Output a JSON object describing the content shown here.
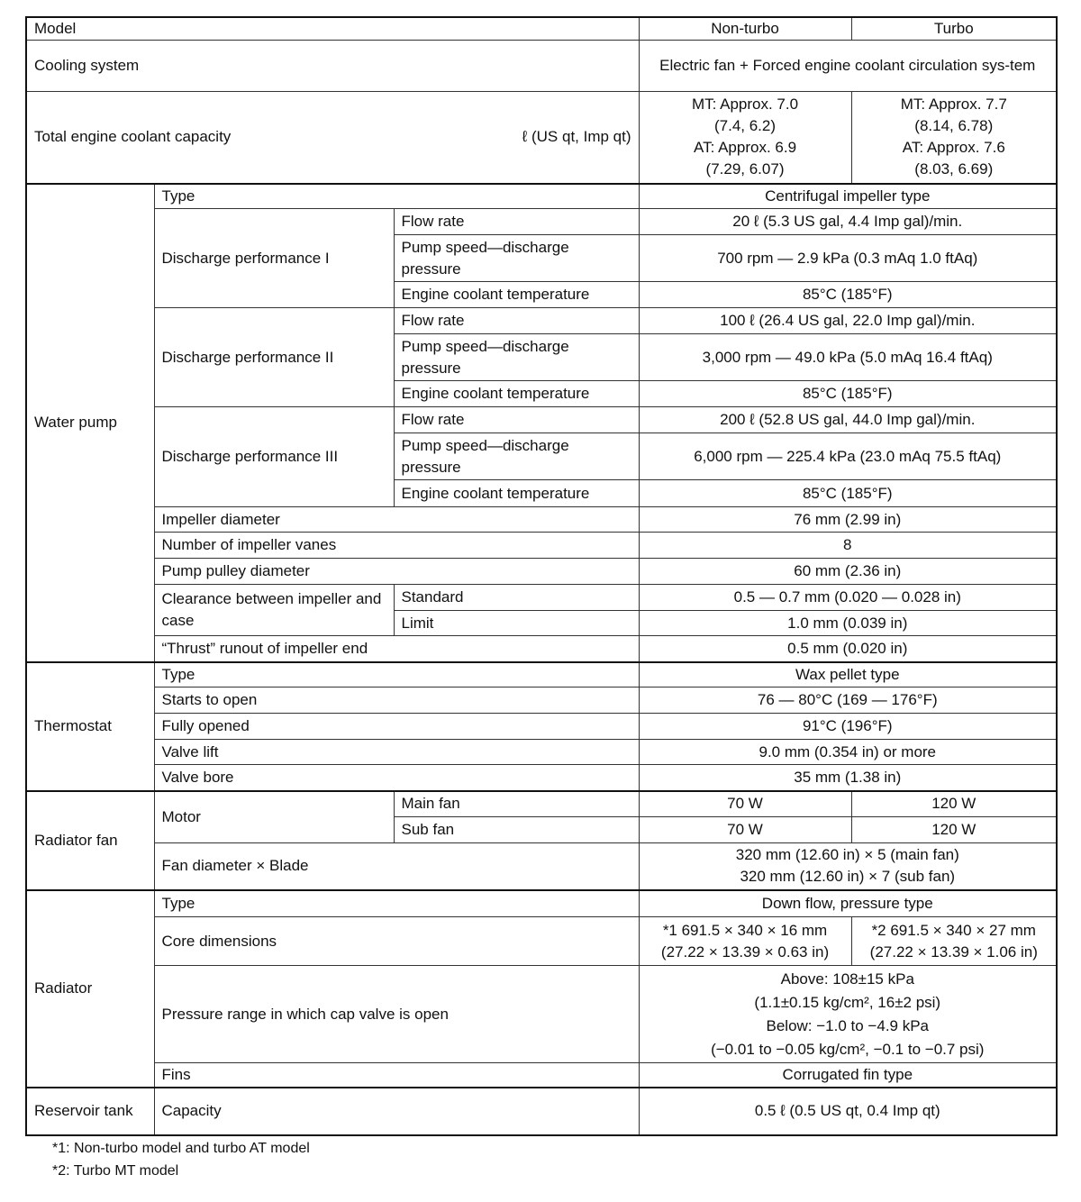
{
  "header": {
    "model": "Model",
    "non_turbo": "Non-turbo",
    "turbo": "Turbo"
  },
  "cooling": {
    "label": "Cooling system",
    "value": "Electric fan + Forced engine coolant circulation sys-tem"
  },
  "capacity": {
    "label": "Total engine coolant capacity",
    "unit": "ℓ (US qt, Imp qt)",
    "non_turbo": [
      "MT: Approx. 7.0",
      "(7.4, 6.2)",
      "AT: Approx. 6.9",
      "(7.29, 6.07)"
    ],
    "turbo": [
      "MT: Approx. 7.7",
      "(8.14, 6.78)",
      "AT: Approx. 7.6",
      "(8.03, 6.69)"
    ]
  },
  "water_pump": {
    "label": "Water  pump",
    "type_label": "Type",
    "type_value": "Centrifugal impeller type",
    "flow_label": "Flow rate",
    "speed_label": "Pump speed—discharge pressure",
    "temp_label": "Engine coolant temperature",
    "dp1": {
      "label": "Discharge performance I",
      "flow": "20  ℓ (5.3 US gal, 4.4 Imp gal)/min.",
      "speed": "700 rpm — 2.9 kPa (0.3 mAq 1.0 ftAq)",
      "temp": "85°C (185°F)"
    },
    "dp2": {
      "label": "Discharge performance II",
      "flow": "100  ℓ (26.4 US gal, 22.0 Imp gal)/min.",
      "speed": "3,000 rpm — 49.0 kPa (5.0 mAq 16.4 ftAq)",
      "temp": "85°C (185°F)"
    },
    "dp3": {
      "label": "Discharge performance III",
      "flow": "200  ℓ (52.8 US gal, 44.0 Imp gal)/min.",
      "speed": "6,000 rpm — 225.4 kPa (23.0 mAq 75.5 ftAq)",
      "temp": "85°C (185°F)"
    },
    "impeller_diameter": {
      "label": "Impeller diameter",
      "value": "76 mm (2.99 in)"
    },
    "vanes": {
      "label": "Number of impeller vanes",
      "value": "8"
    },
    "pulley": {
      "label": "Pump pulley diameter",
      "value": "60 mm (2.36 in)"
    },
    "clearance": {
      "label": "Clearance between impeller and case",
      "standard_label": "Standard",
      "standard": "0.5 — 0.7 mm (0.020 — 0.028 in)",
      "limit_label": "Limit",
      "limit": "1.0 mm (0.039 in)"
    },
    "thrust": {
      "label": "“Thrust” runout of impeller end",
      "value": "0.5 mm (0.020 in)"
    }
  },
  "thermostat": {
    "label": "Thermostat",
    "rows": [
      {
        "label": "Type",
        "value": "Wax pellet type"
      },
      {
        "label": "Starts to open",
        "value": "76 — 80°C (169 — 176°F)"
      },
      {
        "label": "Fully opened",
        "value": "91°C (196°F)"
      },
      {
        "label": "Valve lift",
        "value": "9.0 mm (0.354 in) or more"
      },
      {
        "label": "Valve bore",
        "value": "35 mm (1.38 in)"
      }
    ]
  },
  "radiator_fan": {
    "label": "Radiator fan",
    "motor_label": "Motor",
    "main_label": "Main fan",
    "main_nt": "70 W",
    "main_t": "120 W",
    "sub_label": "Sub fan",
    "sub_nt": "70 W",
    "sub_t": "120 W",
    "fan_label": "Fan diameter × Blade",
    "fan_values": [
      "320 mm (12.60 in) × 5 (main fan)",
      "320 mm (12.60 in) × 7 (sub fan)"
    ]
  },
  "radiator": {
    "label": "Radiator",
    "type_label": "Type",
    "type_value": "Down flow, pressure type",
    "core_label": "Core dimensions",
    "core_1": [
      "*1  691.5 × 340 × 16 mm",
      "(27.22 × 13.39 × 0.63 in)"
    ],
    "core_2": [
      "*2  691.5 × 340 × 27 mm",
      "(27.22 × 13.39 × 1.06 in)"
    ],
    "pressure_label": "Pressure range in which cap valve is open",
    "pressure_values": [
      "Above: 108±15 kPa",
      "(1.1±0.15 kg/cm², 16±2 psi)",
      "Below: −1.0 to −4.9 kPa",
      "(−0.01 to −0.05 kg/cm², −0.1 to −0.7 psi)"
    ],
    "fins_label": "Fins",
    "fins_value": "Corrugated fin type"
  },
  "reservoir": {
    "label": "Reservoir tank",
    "capacity_label": "Capacity",
    "capacity_value": "0.5  ℓ (0.5 US qt, 0.4 Imp qt)"
  },
  "footnotes": [
    "*1: Non-turbo model and turbo AT model",
    "*2: Turbo MT model"
  ]
}
